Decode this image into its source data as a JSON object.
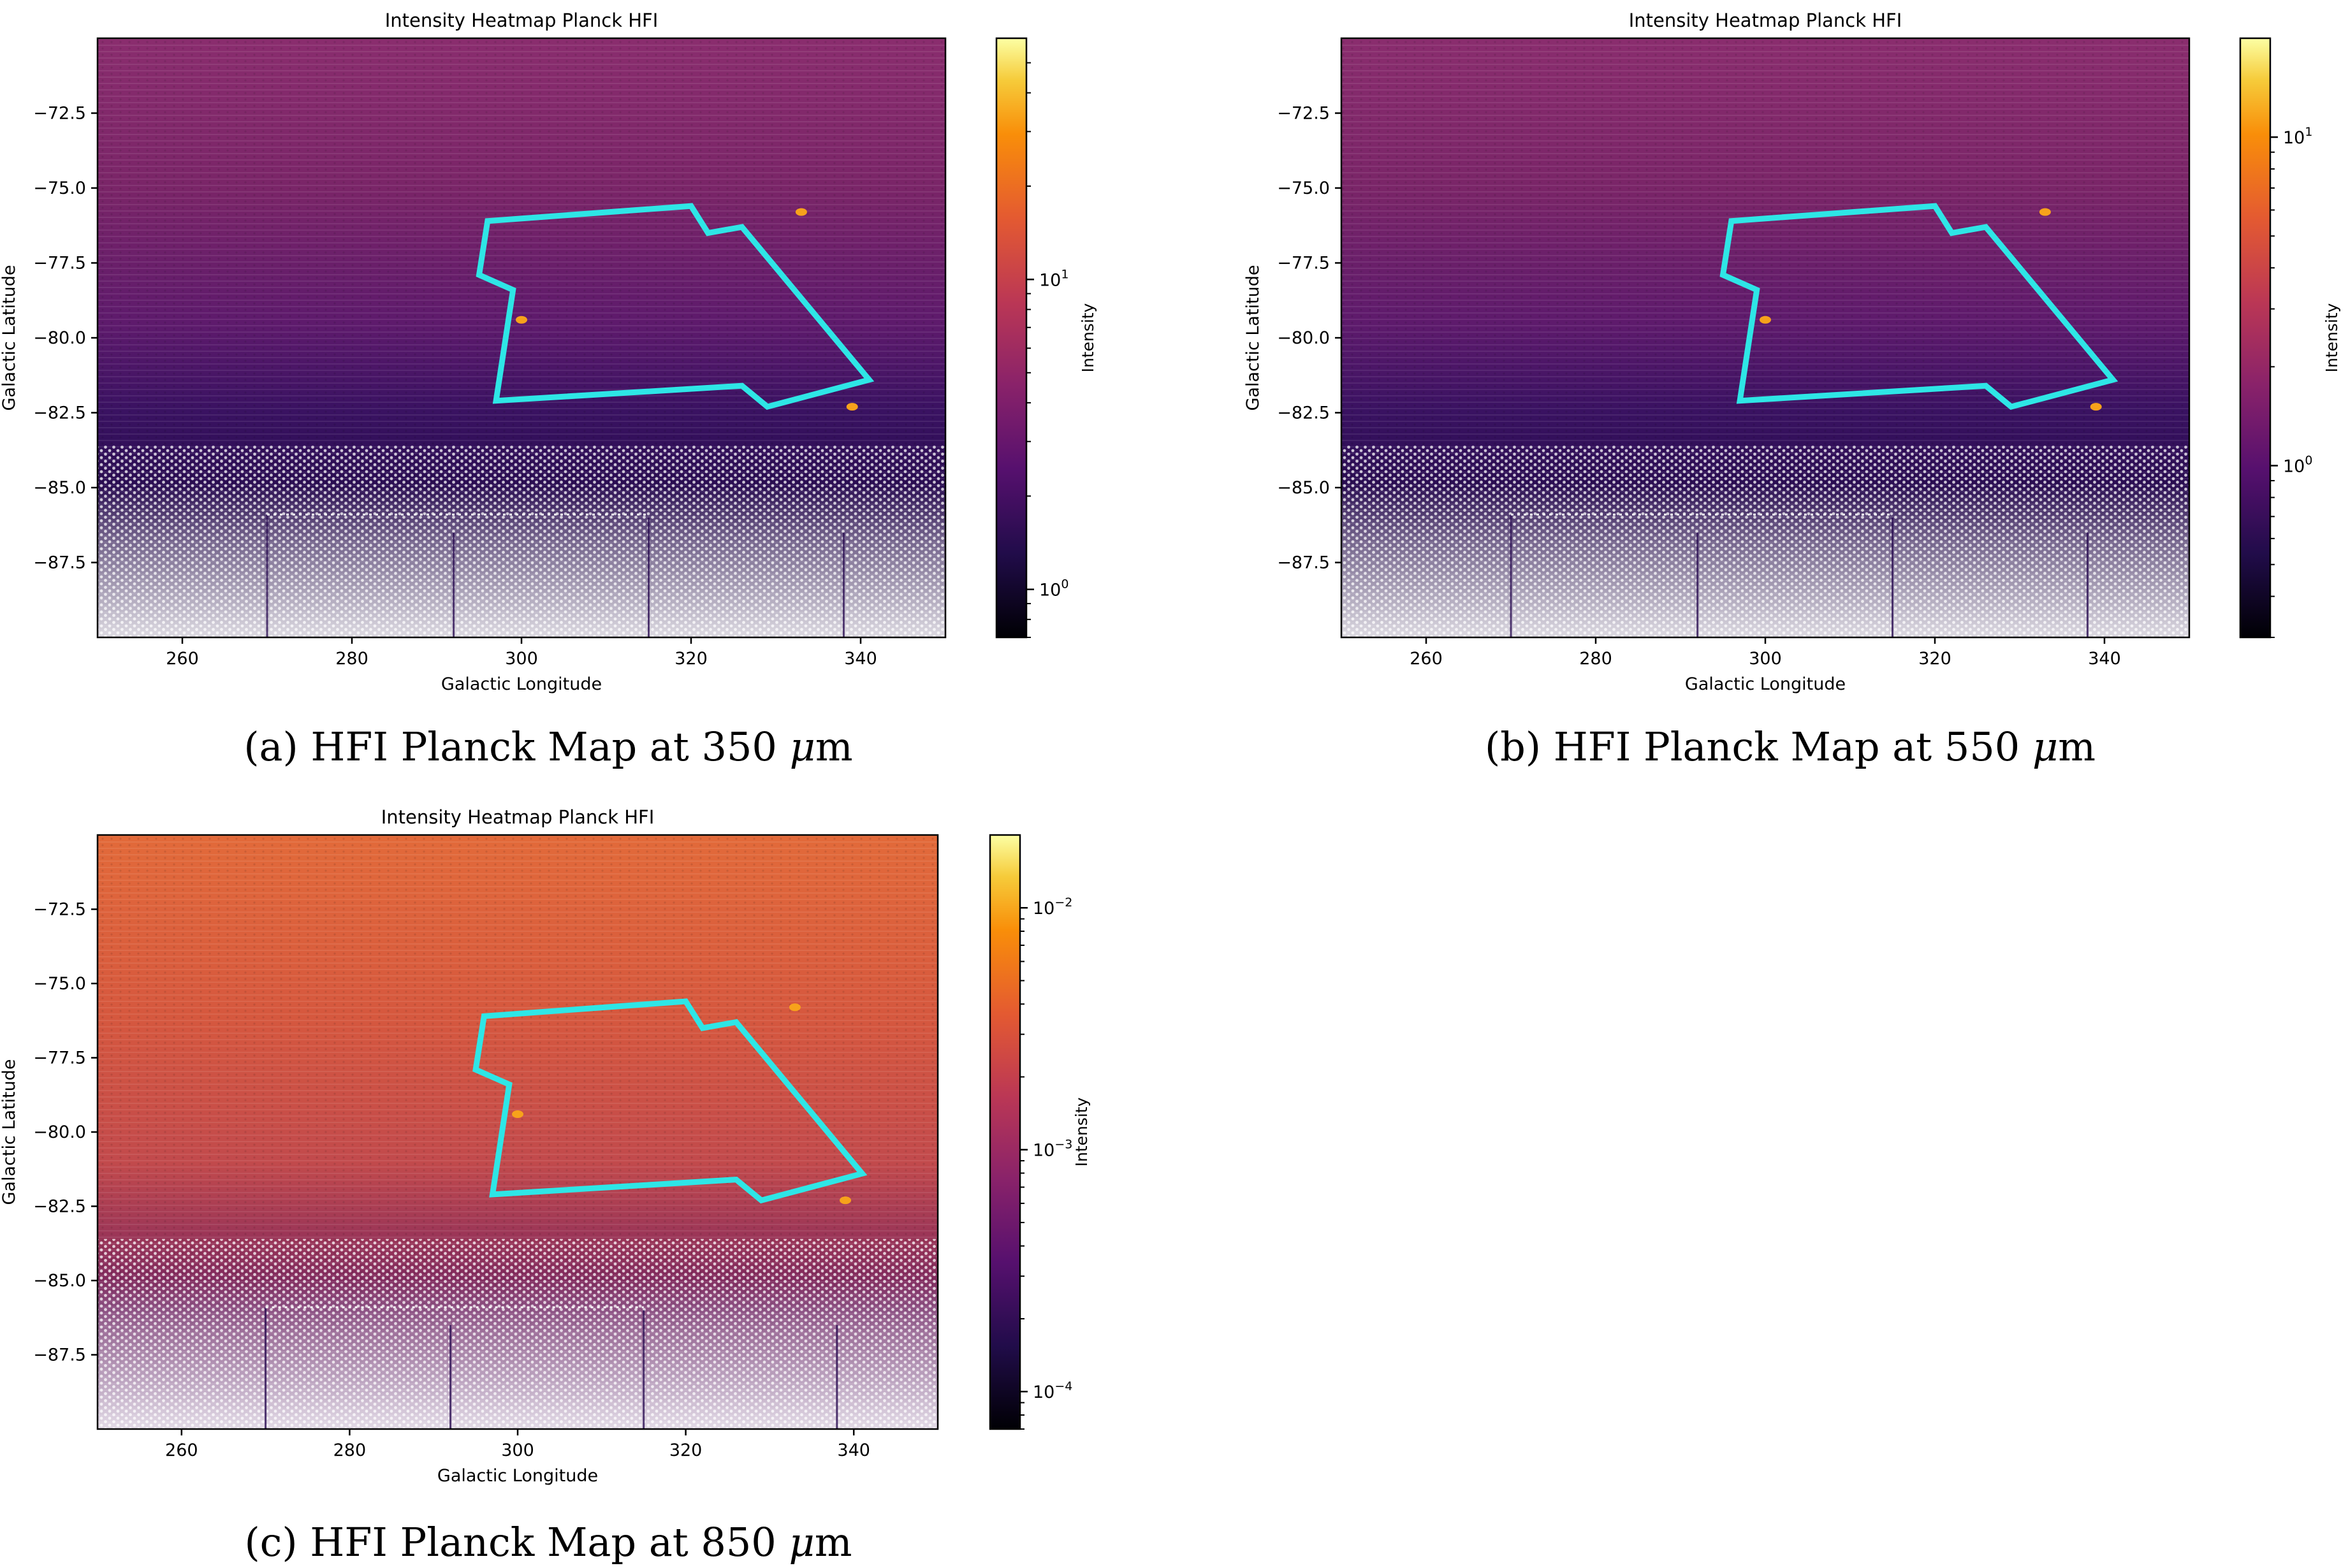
{
  "figure": {
    "panels": [
      {
        "caption_prefix": "(a) HFI Planck Map at ",
        "caption_value": "350",
        "caption_unit_mu": "μ",
        "caption_unit_m": "m"
      },
      {
        "caption_prefix": "(b) HFI Planck Map at ",
        "caption_value": "550",
        "caption_unit_mu": "μ",
        "caption_unit_m": "m"
      },
      {
        "caption_prefix": "(c) HFI Planck Map at ",
        "caption_value": "850",
        "caption_unit_mu": "μ",
        "caption_unit_m": "m"
      }
    ]
  },
  "chart_data": [
    {
      "type": "heatmap",
      "title": "Intensity Heatmap Planck HFI",
      "xlabel": "Galactic Longitude",
      "ylabel": "Galactic Latitude",
      "xlim": [
        250,
        350
      ],
      "ylim": [
        -90,
        -70
      ],
      "xticks": [
        260,
        280,
        300,
        320,
        340
      ],
      "yticks": [
        -72.5,
        -75.0,
        -77.5,
        -80.0,
        -82.5,
        -85.0,
        -87.5
      ],
      "colorbar": {
        "label": "Intensity",
        "scale": "log",
        "cmap": "inferno",
        "range": [
          0.7,
          60
        ],
        "tick_values": [
          1,
          10
        ],
        "tick_base": "10",
        "tick_exponents": [
          "0",
          "1"
        ]
      },
      "region_polygon": {
        "color": "#2ee6e6",
        "points": [
          [
            296,
            -76.1
          ],
          [
            320,
            -75.6
          ],
          [
            322,
            -76.5
          ],
          [
            326,
            -76.3
          ],
          [
            341,
            -81.4
          ],
          [
            329,
            -82.3
          ],
          [
            326,
            -81.6
          ],
          [
            297,
            -82.1
          ],
          [
            299,
            -78.4
          ],
          [
            295,
            -77.9
          ]
        ]
      },
      "point_sources": [
        [
          333,
          -75.8
        ],
        [
          300,
          -79.4
        ],
        [
          339,
          -82.3
        ]
      ]
    },
    {
      "type": "heatmap",
      "title": "Intensity Heatmap Planck HFI",
      "xlabel": "Galactic Longitude",
      "ylabel": "Galactic Latitude",
      "xlim": [
        250,
        350
      ],
      "ylim": [
        -90,
        -70
      ],
      "xticks": [
        260,
        280,
        300,
        320,
        340
      ],
      "yticks": [
        -72.5,
        -75.0,
        -77.5,
        -80.0,
        -82.5,
        -85.0,
        -87.5
      ],
      "colorbar": {
        "label": "Intensity",
        "scale": "log",
        "cmap": "inferno",
        "range": [
          0.3,
          20
        ],
        "tick_values": [
          1,
          10
        ],
        "tick_base": "10",
        "tick_exponents": [
          "0",
          "1"
        ]
      },
      "region_polygon": {
        "color": "#2ee6e6",
        "points": [
          [
            296,
            -76.1
          ],
          [
            320,
            -75.6
          ],
          [
            322,
            -76.5
          ],
          [
            326,
            -76.3
          ],
          [
            341,
            -81.4
          ],
          [
            329,
            -82.3
          ],
          [
            326,
            -81.6
          ],
          [
            297,
            -82.1
          ],
          [
            299,
            -78.4
          ],
          [
            295,
            -77.9
          ]
        ]
      },
      "point_sources": [
        [
          333,
          -75.8
        ],
        [
          300,
          -79.4
        ],
        [
          339,
          -82.3
        ]
      ]
    },
    {
      "type": "heatmap",
      "title": "Intensity Heatmap Planck HFI",
      "xlabel": "Galactic Longitude",
      "ylabel": "Galactic Latitude",
      "xlim": [
        250,
        350
      ],
      "ylim": [
        -90,
        -70
      ],
      "xticks": [
        260,
        280,
        300,
        320,
        340
      ],
      "yticks": [
        -72.5,
        -75.0,
        -77.5,
        -80.0,
        -82.5,
        -85.0,
        -87.5
      ],
      "colorbar": {
        "label": "Intensity",
        "scale": "log",
        "cmap": "inferno",
        "range": [
          7e-05,
          0.02
        ],
        "tick_values": [
          0.0001,
          0.001,
          0.01
        ],
        "tick_base": "10",
        "tick_exponents": [
          "−4",
          "−3",
          "−2"
        ]
      },
      "region_polygon": {
        "color": "#2ee6e6",
        "points": [
          [
            296,
            -76.1
          ],
          [
            320,
            -75.6
          ],
          [
            322,
            -76.5
          ],
          [
            326,
            -76.3
          ],
          [
            341,
            -81.4
          ],
          [
            329,
            -82.3
          ],
          [
            326,
            -81.6
          ],
          [
            297,
            -82.1
          ],
          [
            299,
            -78.4
          ],
          [
            295,
            -77.9
          ]
        ]
      },
      "point_sources": [
        [
          333,
          -75.8
        ],
        [
          300,
          -79.4
        ],
        [
          339,
          -82.3
        ]
      ]
    }
  ]
}
